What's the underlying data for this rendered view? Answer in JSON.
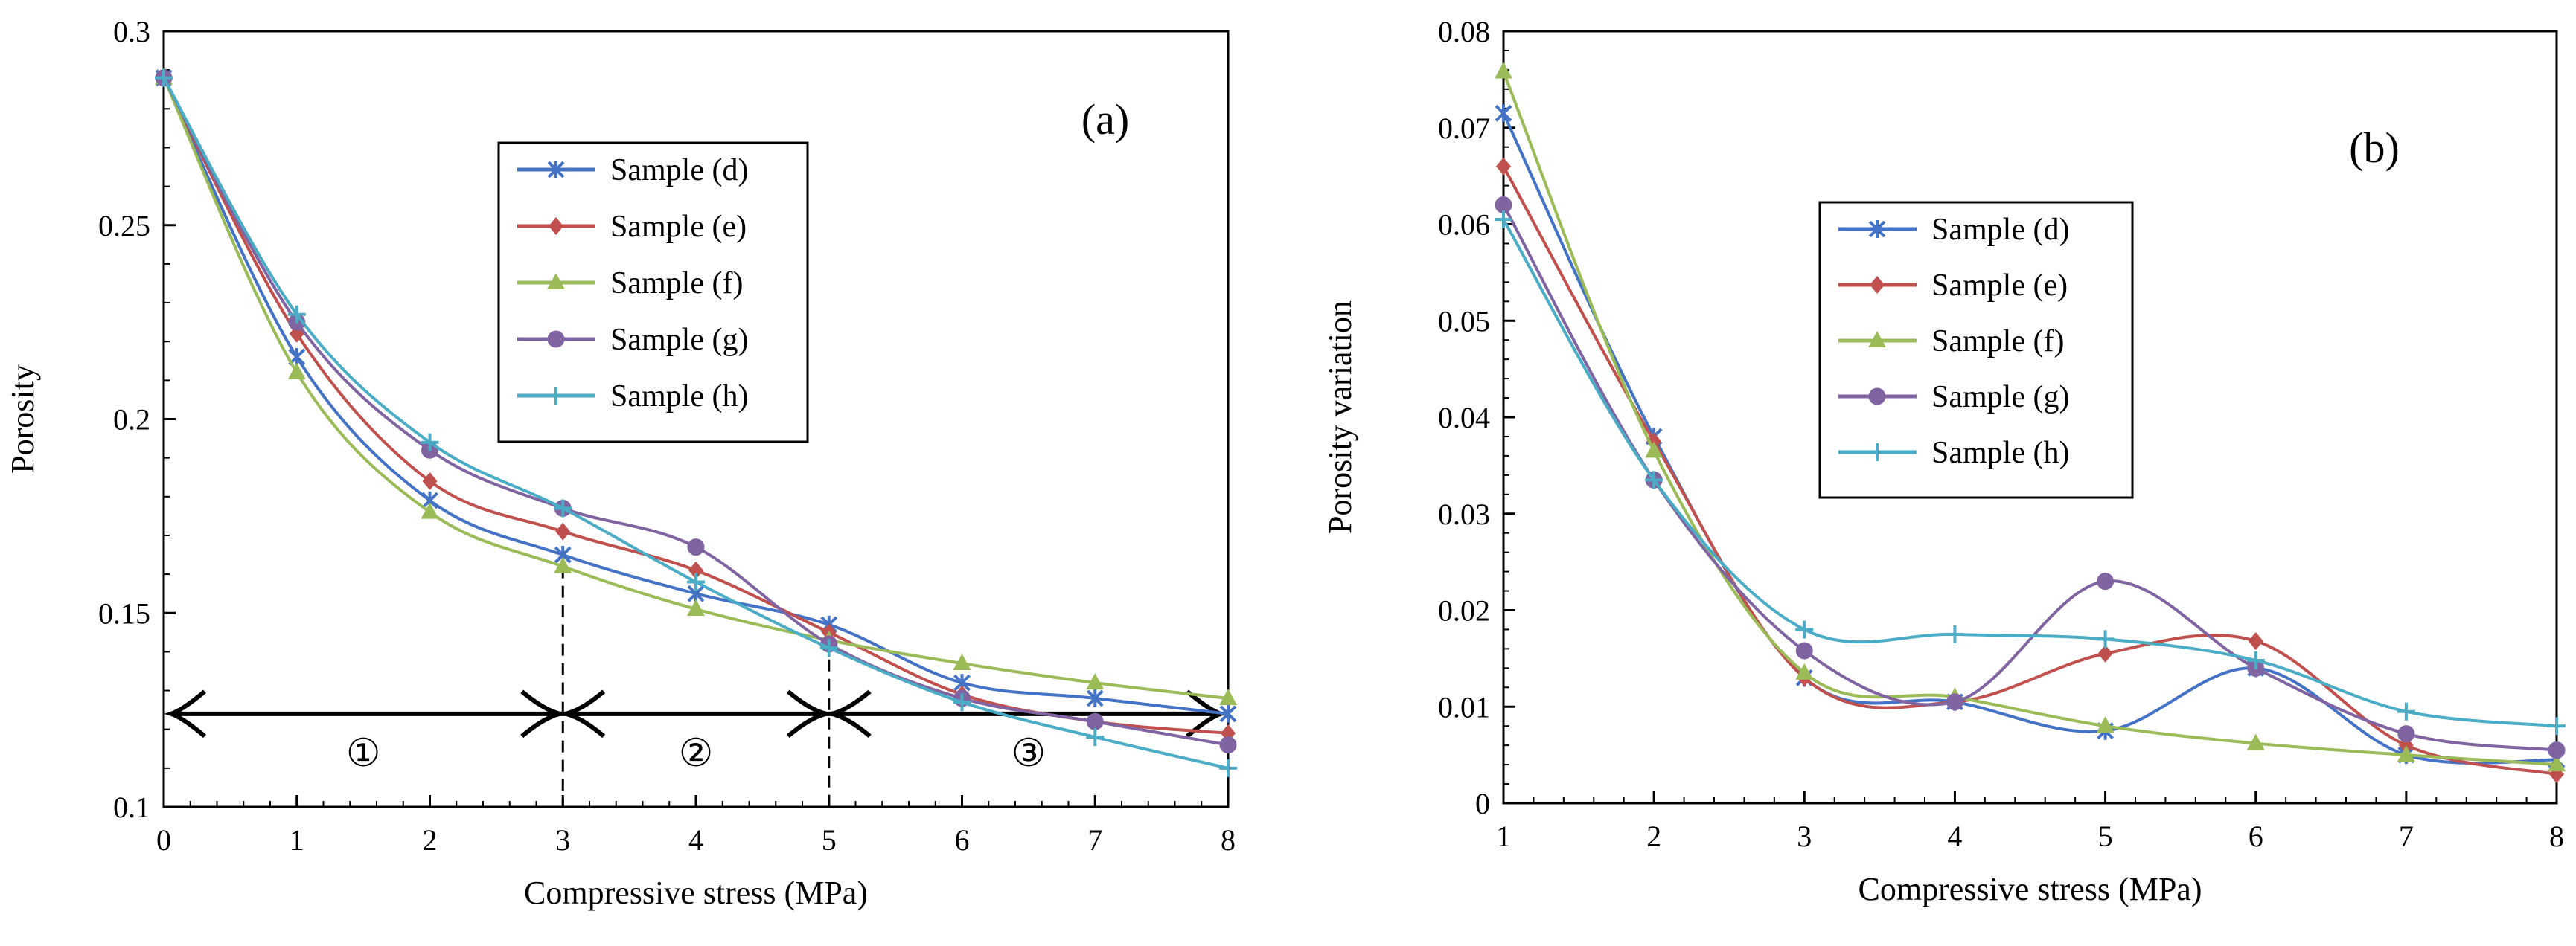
{
  "chart_data": [
    {
      "type": "line",
      "panel_label": "(a)",
      "xlabel": "Compressive stress (MPa)",
      "ylabel": "Porosity",
      "xlim": [
        0,
        8
      ],
      "ylim": [
        0.1,
        0.3
      ],
      "xticks": [
        "0",
        "1",
        "2",
        "3",
        "4",
        "5",
        "6",
        "7",
        "8"
      ],
      "yticks": [
        "0.1",
        "0.15",
        "0.2",
        "0.25",
        "0.3"
      ],
      "x": [
        0,
        1,
        2,
        3,
        4,
        5,
        6,
        7,
        8
      ],
      "series": [
        {
          "name": "Sample (d)",
          "color": "#4472C4",
          "marker": "asterisk",
          "values": [
            0.288,
            0.216,
            0.179,
            0.165,
            0.155,
            0.147,
            0.132,
            0.128,
            0.124
          ]
        },
        {
          "name": "Sample (e)",
          "color": "#C0504D",
          "marker": "diamond",
          "values": [
            0.288,
            0.222,
            0.184,
            0.171,
            0.161,
            0.145,
            0.129,
            0.122,
            0.119
          ]
        },
        {
          "name": "Sample (f)",
          "color": "#9BBB59",
          "marker": "triangle",
          "values": [
            0.288,
            0.212,
            0.176,
            0.162,
            0.151,
            0.143,
            0.137,
            0.132,
            0.128
          ]
        },
        {
          "name": "Sample (g)",
          "color": "#8064A2",
          "marker": "circle",
          "values": [
            0.288,
            0.225,
            0.192,
            0.177,
            0.167,
            0.142,
            0.128,
            0.122,
            0.116
          ]
        },
        {
          "name": "Sample (h)",
          "color": "#4BACC6",
          "marker": "plus",
          "values": [
            0.288,
            0.227,
            0.194,
            0.177,
            0.158,
            0.141,
            0.127,
            0.118,
            0.11
          ]
        }
      ],
      "legend_position": "upper-center",
      "annotations": {
        "arrow_y": 0.124,
        "dividers_x": [
          3,
          5
        ],
        "regions": [
          {
            "label": "①",
            "x": 1.5
          },
          {
            "label": "②",
            "x": 4
          },
          {
            "label": "③",
            "x": 6.5
          }
        ]
      }
    },
    {
      "type": "line",
      "panel_label": "(b)",
      "xlabel": "Compressive stress (MPa)",
      "ylabel": "Porosity variation",
      "xlim": [
        1,
        8
      ],
      "ylim": [
        0,
        0.08
      ],
      "xticks": [
        "1",
        "2",
        "3",
        "4",
        "5",
        "6",
        "7",
        "8"
      ],
      "yticks": [
        "0",
        "0.01",
        "0.02",
        "0.03",
        "0.04",
        "0.05",
        "0.06",
        "0.07",
        "0.08"
      ],
      "x": [
        1,
        2,
        3,
        4,
        5,
        6,
        7,
        8
      ],
      "series": [
        {
          "name": "Sample (d)",
          "color": "#4472C4",
          "marker": "asterisk",
          "values": [
            0.0715,
            0.038,
            0.013,
            0.0105,
            0.0075,
            0.014,
            0.005,
            0.0045
          ]
        },
        {
          "name": "Sample (e)",
          "color": "#C0504D",
          "marker": "diamond",
          "values": [
            0.066,
            0.0375,
            0.013,
            0.0105,
            0.0155,
            0.0168,
            0.006,
            0.003
          ]
        },
        {
          "name": "Sample (f)",
          "color": "#9BBB59",
          "marker": "triangle",
          "values": [
            0.0758,
            0.0365,
            0.0135,
            0.011,
            0.008,
            0.0062,
            0.005,
            0.004
          ]
        },
        {
          "name": "Sample (g)",
          "color": "#8064A2",
          "marker": "circle",
          "values": [
            0.062,
            0.0335,
            0.0158,
            0.0105,
            0.023,
            0.014,
            0.0072,
            0.0055
          ]
        },
        {
          "name": "Sample (h)",
          "color": "#4BACC6",
          "marker": "plus",
          "values": [
            0.0605,
            0.0335,
            0.018,
            0.0175,
            0.017,
            0.0148,
            0.0095,
            0.008
          ]
        }
      ],
      "legend_position": "upper-center"
    }
  ]
}
